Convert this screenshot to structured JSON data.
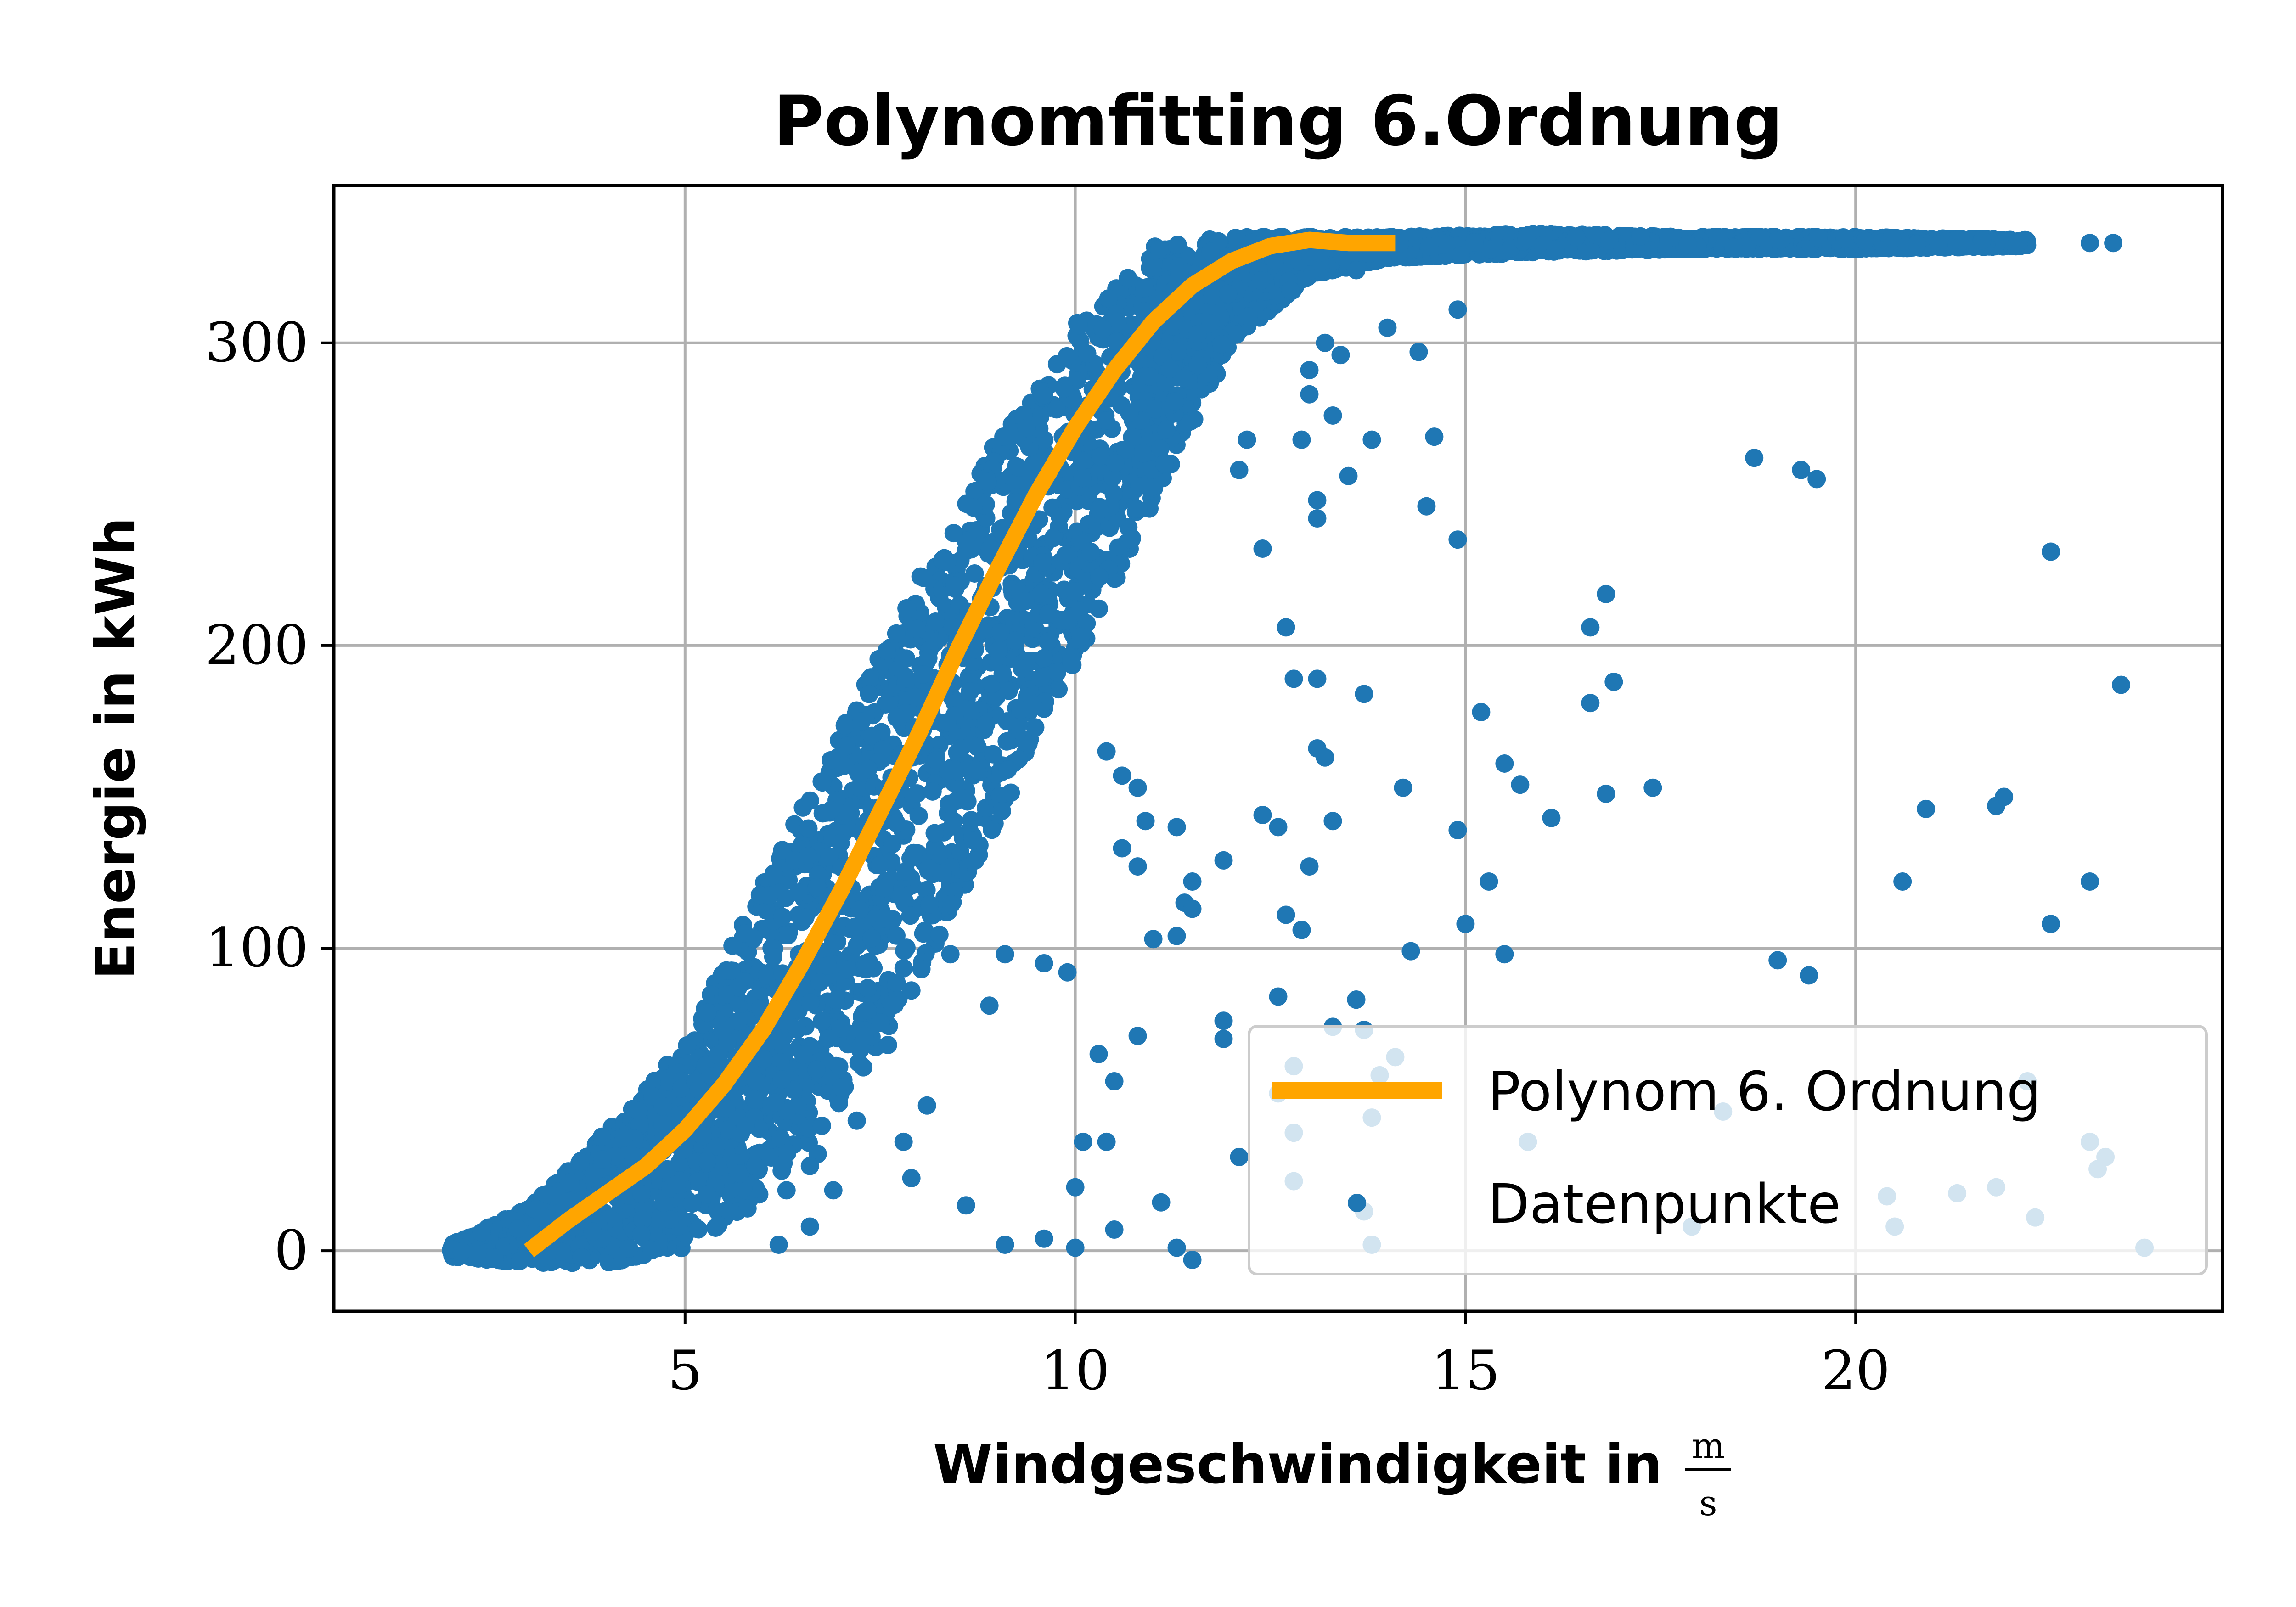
{
  "chart_data": {
    "type": "scatter",
    "title": "Polynomfitting 6.Ordnung",
    "xlabel": "Windgeschwindigkeit in",
    "xlabel_unit": {
      "numerator": "m",
      "denominator": "s"
    },
    "ylabel": "Energie in kWh",
    "xlim": [
      0.5,
      24.7
    ],
    "ylim": [
      -20,
      352
    ],
    "x_ticks": [
      5,
      10,
      15,
      20
    ],
    "y_ticks": [
      0,
      100,
      200,
      300
    ],
    "grid": true,
    "legend_position": "lower-right",
    "colors": {
      "scatter": "#1f77b4",
      "fit": "#ffa500",
      "grid": "#b0b0b0"
    },
    "series": [
      {
        "name": "Polynom 6. Ordnung",
        "kind": "line",
        "points": [
          [
            3.0,
            0
          ],
          [
            3.5,
            10
          ],
          [
            4.0,
            19
          ],
          [
            4.5,
            28
          ],
          [
            5.0,
            40
          ],
          [
            5.5,
            55
          ],
          [
            6.0,
            73
          ],
          [
            6.5,
            95
          ],
          [
            7.0,
            119
          ],
          [
            7.5,
            145
          ],
          [
            8.0,
            171
          ],
          [
            8.5,
            199
          ],
          [
            9.0,
            225
          ],
          [
            9.5,
            250
          ],
          [
            10.0,
            272
          ],
          [
            10.5,
            291
          ],
          [
            11.0,
            307
          ],
          [
            11.5,
            319
          ],
          [
            12.0,
            327
          ],
          [
            12.5,
            332
          ],
          [
            13.0,
            334
          ],
          [
            13.5,
            333
          ],
          [
            14.1,
            333
          ]
        ]
      },
      {
        "name": "Datenpunkte",
        "kind": "scatter",
        "curve_band": [
          [
            2.0,
            -2,
            2
          ],
          [
            3.0,
            -4,
            14
          ],
          [
            4.0,
            -4,
            40
          ],
          [
            5.0,
            0,
            68
          ],
          [
            6.0,
            18,
            122
          ],
          [
            7.0,
            48,
            172
          ],
          [
            8.0,
            90,
            222
          ],
          [
            9.0,
            142,
            268
          ],
          [
            10.0,
            195,
            306
          ],
          [
            11.0,
            245,
            332
          ],
          [
            12.0,
            300,
            335
          ],
          [
            13.0,
            322,
            335
          ],
          [
            14.0,
            328,
            335
          ],
          [
            16.0,
            330,
            336
          ],
          [
            18.0,
            331,
            335
          ],
          [
            20.0,
            331,
            335
          ],
          [
            22.2,
            332,
            334
          ]
        ],
        "outliers": [
          [
            23.0,
            333
          ],
          [
            23.3,
            333
          ],
          [
            19.3,
            258
          ],
          [
            18.7,
            262
          ],
          [
            19.5,
            255
          ],
          [
            22.5,
            231
          ],
          [
            23.4,
            187
          ],
          [
            21.9,
            150
          ],
          [
            21.8,
            147
          ],
          [
            20.9,
            146
          ],
          [
            20.6,
            122
          ],
          [
            23.0,
            122
          ],
          [
            22.5,
            108
          ],
          [
            19.0,
            96
          ],
          [
            19.4,
            91
          ],
          [
            16.6,
            206
          ],
          [
            16.8,
            217
          ],
          [
            16.9,
            188
          ],
          [
            16.6,
            181
          ],
          [
            16.8,
            151
          ],
          [
            17.4,
            153
          ],
          [
            16.1,
            143
          ],
          [
            15.7,
            154
          ],
          [
            15.5,
            161
          ],
          [
            15.2,
            178
          ],
          [
            15.3,
            122
          ],
          [
            15.5,
            98
          ],
          [
            15.0,
            108
          ],
          [
            14.9,
            139
          ],
          [
            14.9,
            235
          ],
          [
            14.5,
            246
          ],
          [
            14.6,
            269
          ],
          [
            14.0,
            305
          ],
          [
            14.4,
            297
          ],
          [
            14.9,
            311
          ],
          [
            13.6,
            324
          ],
          [
            13.8,
            330
          ],
          [
            13.2,
            300
          ],
          [
            13.4,
            296
          ],
          [
            13.0,
            291
          ],
          [
            13.0,
            283
          ],
          [
            13.3,
            276
          ],
          [
            13.8,
            268
          ],
          [
            13.5,
            256
          ],
          [
            13.1,
            248
          ],
          [
            13.1,
            242
          ],
          [
            12.7,
            206
          ],
          [
            12.4,
            232
          ],
          [
            12.1,
            258
          ],
          [
            12.2,
            268
          ],
          [
            12.9,
            268
          ],
          [
            12.8,
            189
          ],
          [
            13.1,
            189
          ],
          [
            13.7,
            184
          ],
          [
            13.1,
            166
          ],
          [
            13.2,
            163
          ],
          [
            14.2,
            153
          ],
          [
            13.3,
            142
          ],
          [
            13.0,
            127
          ],
          [
            12.4,
            144
          ],
          [
            12.6,
            140
          ],
          [
            12.7,
            111
          ],
          [
            12.9,
            106
          ],
          [
            11.9,
            129
          ],
          [
            11.5,
            122
          ],
          [
            11.3,
            104
          ],
          [
            11.0,
            103
          ],
          [
            10.6,
            157
          ],
          [
            10.8,
            153
          ],
          [
            10.4,
            165
          ],
          [
            10.9,
            142
          ],
          [
            11.3,
            140
          ],
          [
            11.4,
            115
          ],
          [
            11.5,
            113
          ],
          [
            10.6,
            133
          ],
          [
            10.8,
            127
          ],
          [
            12.6,
            84
          ],
          [
            13.6,
            83
          ],
          [
            14.3,
            99
          ],
          [
            13.3,
            74
          ],
          [
            13.7,
            73
          ],
          [
            12.8,
            61
          ],
          [
            14.1,
            64
          ],
          [
            13.9,
            58
          ],
          [
            11.9,
            76
          ],
          [
            11.9,
            70
          ],
          [
            10.8,
            71
          ],
          [
            10.3,
            65
          ],
          [
            10.5,
            56
          ],
          [
            12.1,
            31
          ],
          [
            12.8,
            39
          ],
          [
            12.6,
            52
          ],
          [
            13.8,
            44
          ],
          [
            12.8,
            23
          ],
          [
            13.7,
            13
          ],
          [
            13.8,
            2
          ],
          [
            11.3,
            1
          ],
          [
            11.5,
            -3
          ],
          [
            11.1,
            16
          ],
          [
            10.5,
            7
          ],
          [
            10.4,
            36
          ],
          [
            10.1,
            36
          ],
          [
            9.9,
            92
          ],
          [
            9.6,
            95
          ],
          [
            9.1,
            98
          ],
          [
            8.9,
            81
          ],
          [
            8.4,
            98
          ],
          [
            7.9,
            86
          ],
          [
            7.6,
            68
          ],
          [
            8.1,
            48
          ],
          [
            7.2,
            43
          ],
          [
            7.8,
            36
          ],
          [
            6.7,
            32
          ],
          [
            6.6,
            28
          ],
          [
            6.3,
            20
          ],
          [
            5.9,
            28
          ],
          [
            5.8,
            14
          ],
          [
            6.6,
            8
          ],
          [
            6.9,
            20
          ],
          [
            6.2,
            2
          ],
          [
            7.9,
            24
          ],
          [
            8.6,
            15
          ],
          [
            9.1,
            2
          ],
          [
            9.6,
            4
          ],
          [
            10.0,
            1
          ],
          [
            10.0,
            21
          ],
          [
            7.3,
            71
          ],
          [
            7.0,
            54
          ],
          [
            15.8,
            36
          ],
          [
            20.4,
            18
          ],
          [
            21.3,
            19
          ],
          [
            21.8,
            21
          ],
          [
            22.2,
            56
          ],
          [
            22.3,
            11
          ],
          [
            23.0,
            36
          ],
          [
            23.1,
            27
          ],
          [
            23.2,
            31
          ],
          [
            23.7,
            1
          ],
          [
            18.3,
            46
          ],
          [
            13.6,
            83
          ],
          [
            17.9,
            8
          ],
          [
            20.5,
            8
          ]
        ]
      }
    ]
  }
}
